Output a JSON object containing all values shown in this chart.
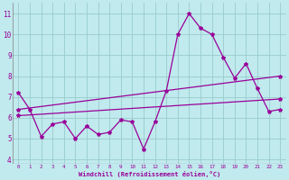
{
  "xlabel": "Windchill (Refroidissement éolien,°C)",
  "xlim": [
    -0.5,
    23.5
  ],
  "ylim": [
    3.8,
    11.5
  ],
  "yticks": [
    4,
    5,
    6,
    7,
    8,
    9,
    10,
    11
  ],
  "xticks": [
    0,
    1,
    2,
    3,
    4,
    5,
    6,
    7,
    8,
    9,
    10,
    11,
    12,
    13,
    14,
    15,
    16,
    17,
    18,
    19,
    20,
    21,
    22,
    23
  ],
  "bg_color": "#c0eaed",
  "line_color": "#990099",
  "grid_color": "#99cccc",
  "series1_x": [
    0,
    1,
    2,
    3,
    4,
    5,
    6,
    7,
    8,
    9,
    10,
    11,
    12,
    13,
    14,
    15,
    16,
    17,
    18,
    19,
    20,
    21,
    22,
    23
  ],
  "series1_y": [
    7.2,
    6.4,
    5.1,
    5.7,
    5.8,
    5.0,
    5.6,
    5.2,
    5.3,
    5.9,
    5.8,
    4.5,
    5.8,
    7.3,
    10.0,
    11.0,
    10.3,
    10.0,
    8.9,
    7.9,
    8.6,
    7.4,
    6.3,
    6.4
  ],
  "series2_x": [
    0,
    23
  ],
  "series2_y": [
    6.1,
    6.9
  ],
  "series3_x": [
    0,
    23
  ],
  "series3_y": [
    6.4,
    8.0
  ],
  "marker": "*",
  "markersize": 3,
  "linewidth": 0.9
}
